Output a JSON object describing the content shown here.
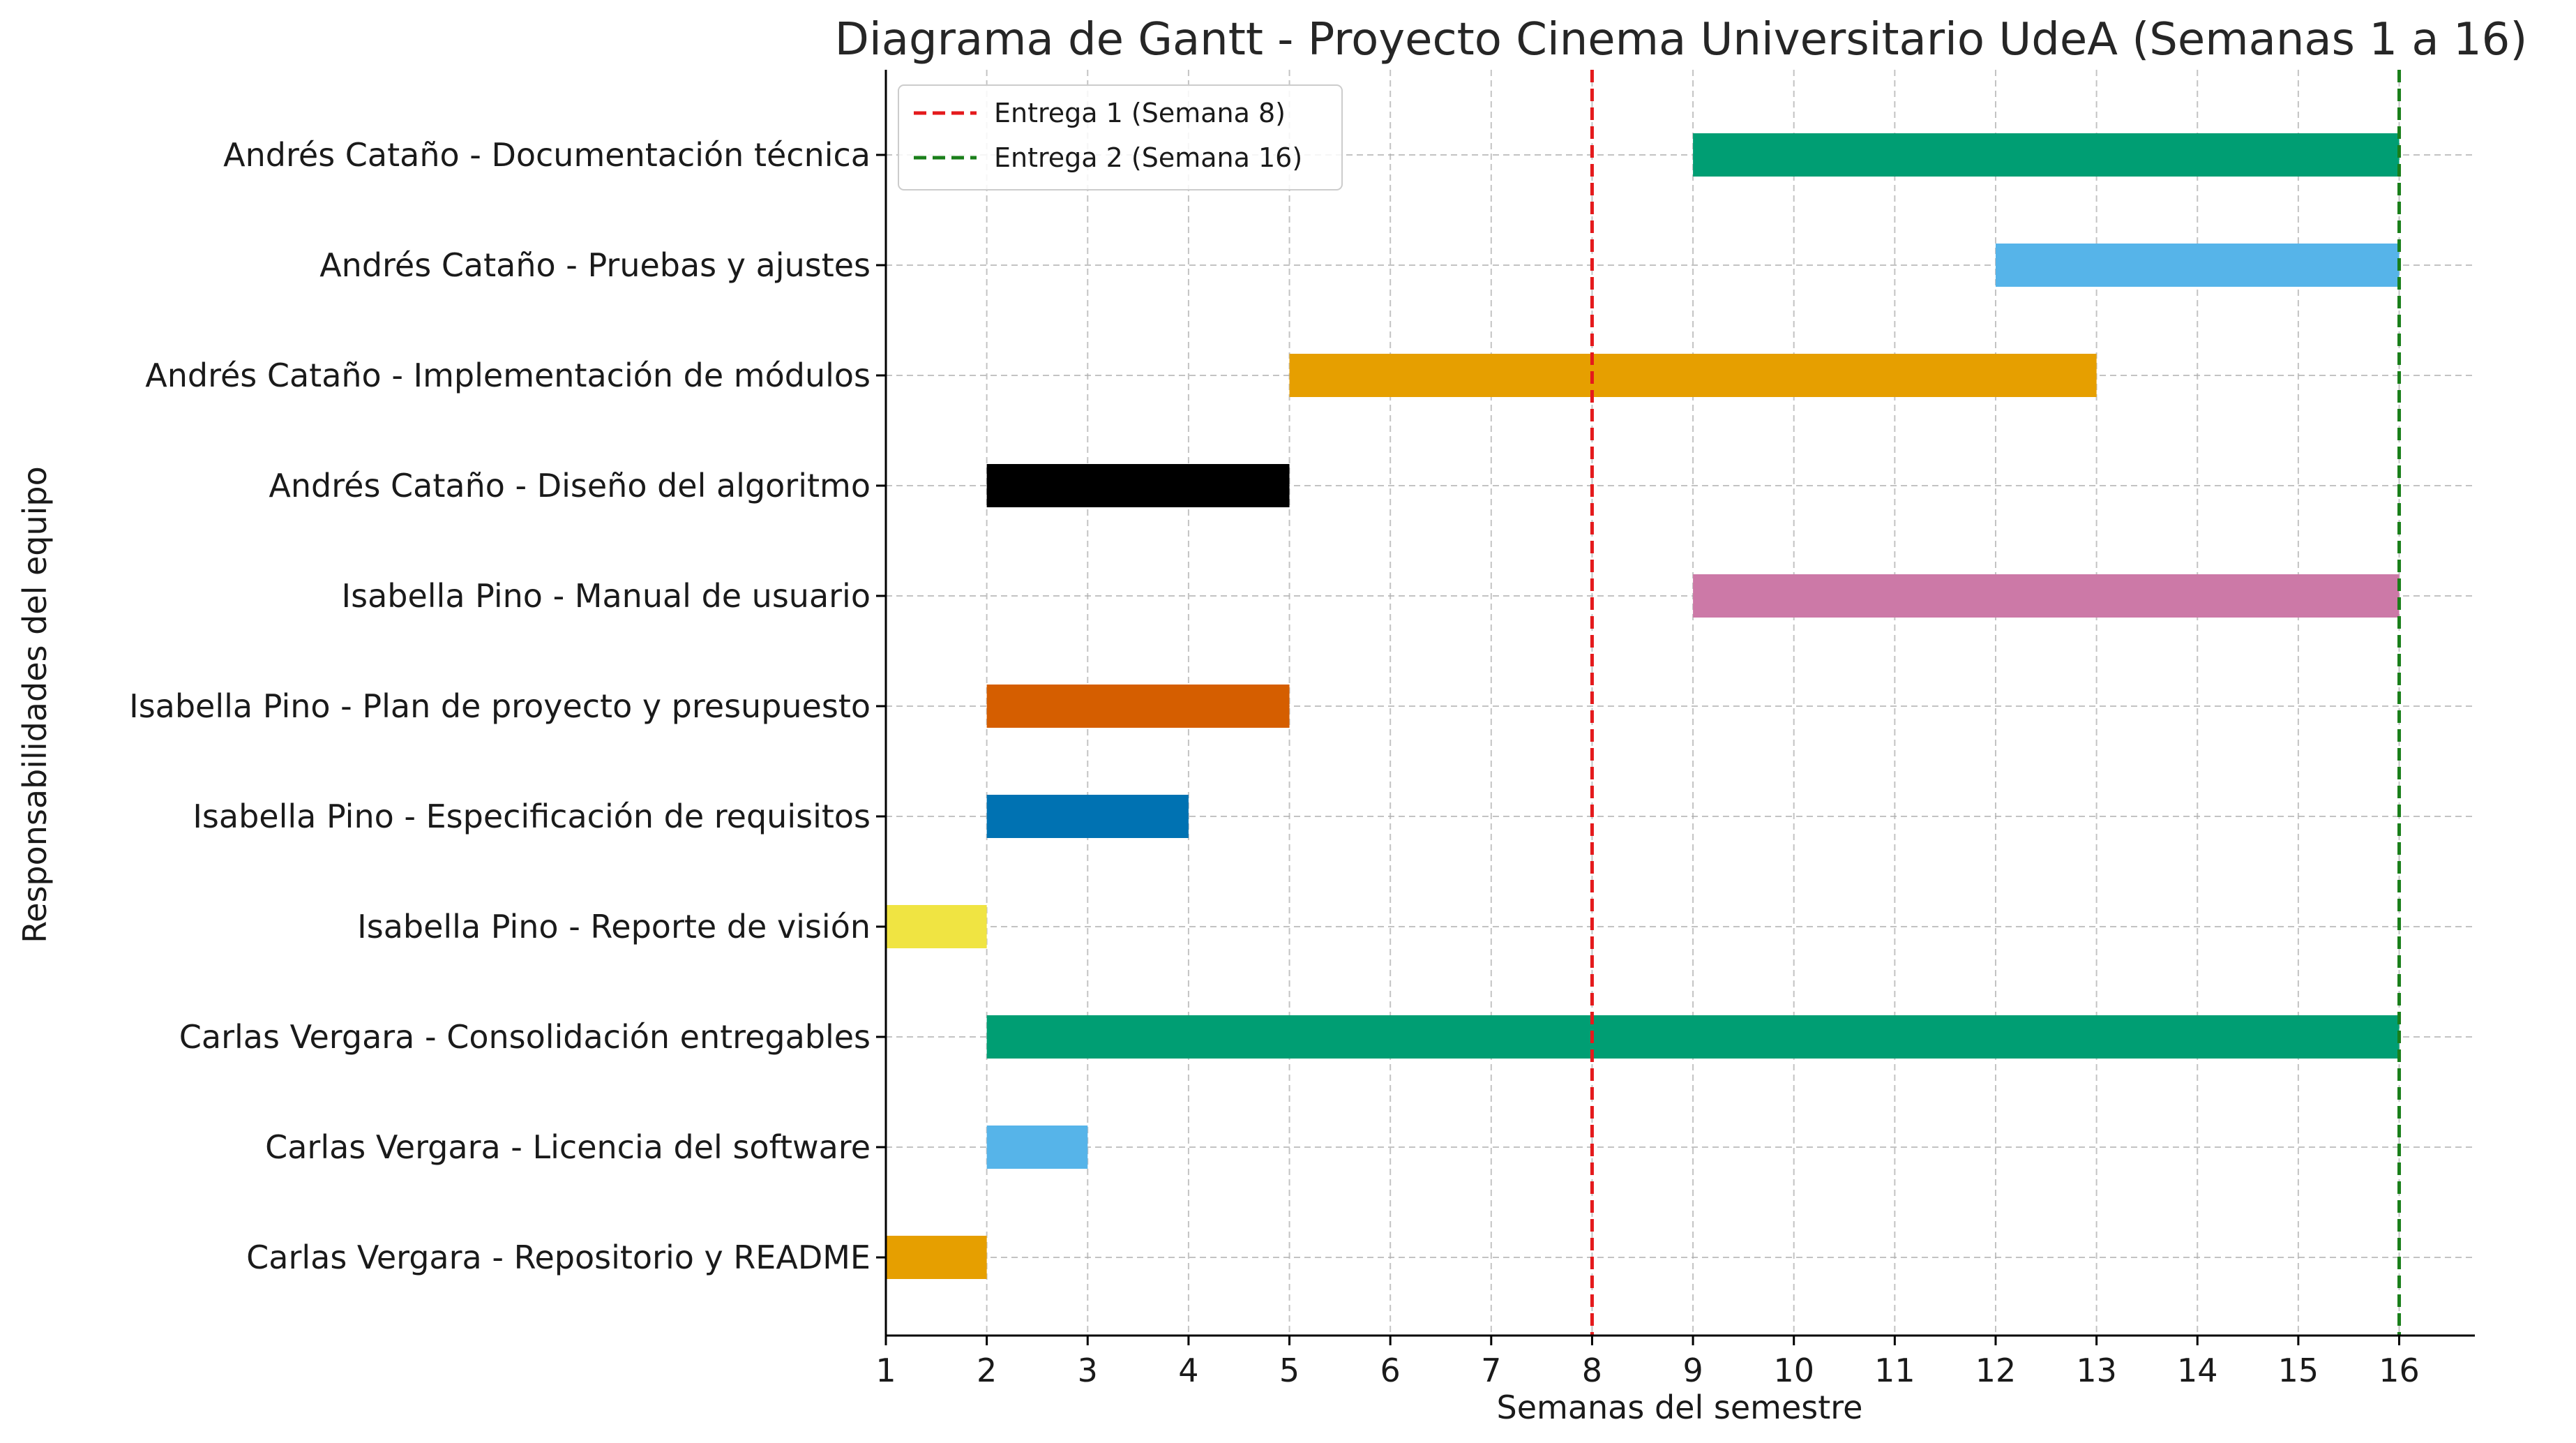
{
  "chart_data": {
    "type": "bar",
    "orientation": "horizontal",
    "title": "Diagrama de Gantt - Proyecto Cinema Universitario UdeA (Semanas 1 a 16)",
    "xlabel": "Semanas del semestre",
    "ylabel": "Responsabilidades del equipo",
    "xlim": [
      1,
      16.75
    ],
    "xticks": [
      1,
      2,
      3,
      4,
      5,
      6,
      7,
      8,
      9,
      10,
      11,
      12,
      13,
      14,
      15,
      16
    ],
    "grid": true,
    "legend_position": "top-left",
    "tasks": [
      {
        "label": "Andrés Cataño - Documentación técnica",
        "start": 9,
        "end": 16,
        "color": "#009E73"
      },
      {
        "label": "Andrés Cataño - Pruebas y ajustes",
        "start": 12,
        "end": 16,
        "color": "#56B4E9"
      },
      {
        "label": "Andrés Cataño - Implementación de módulos",
        "start": 5,
        "end": 13,
        "color": "#E69F00"
      },
      {
        "label": "Andrés Cataño - Diseño del algoritmo",
        "start": 2,
        "end": 5,
        "color": "#000000"
      },
      {
        "label": "Isabella Pino - Manual de usuario",
        "start": 9,
        "end": 16,
        "color": "#CC79A7"
      },
      {
        "label": "Isabella Pino - Plan de proyecto y presupuesto",
        "start": 2,
        "end": 5,
        "color": "#D55E00"
      },
      {
        "label": "Isabella Pino - Especificación de requisitos",
        "start": 2,
        "end": 4,
        "color": "#0072B2"
      },
      {
        "label": "Isabella Pino - Reporte de visión",
        "start": 1,
        "end": 2,
        "color": "#F0E442"
      },
      {
        "label": "Carlas Vergara - Consolidación entregables",
        "start": 2,
        "end": 16,
        "color": "#009E73"
      },
      {
        "label": "Carlas Vergara - Licencia del software",
        "start": 2,
        "end": 3,
        "color": "#56B4E9"
      },
      {
        "label": "Carlas Vergara - Repositorio y README",
        "start": 1,
        "end": 2,
        "color": "#E69F00"
      }
    ],
    "milestones": [
      {
        "label": "Entrega 1 (Semana 8)",
        "week": 8,
        "color": "#e41a1c"
      },
      {
        "label": "Entrega 2 (Semana 16)",
        "week": 16,
        "color": "#1a7f1a"
      }
    ]
  }
}
